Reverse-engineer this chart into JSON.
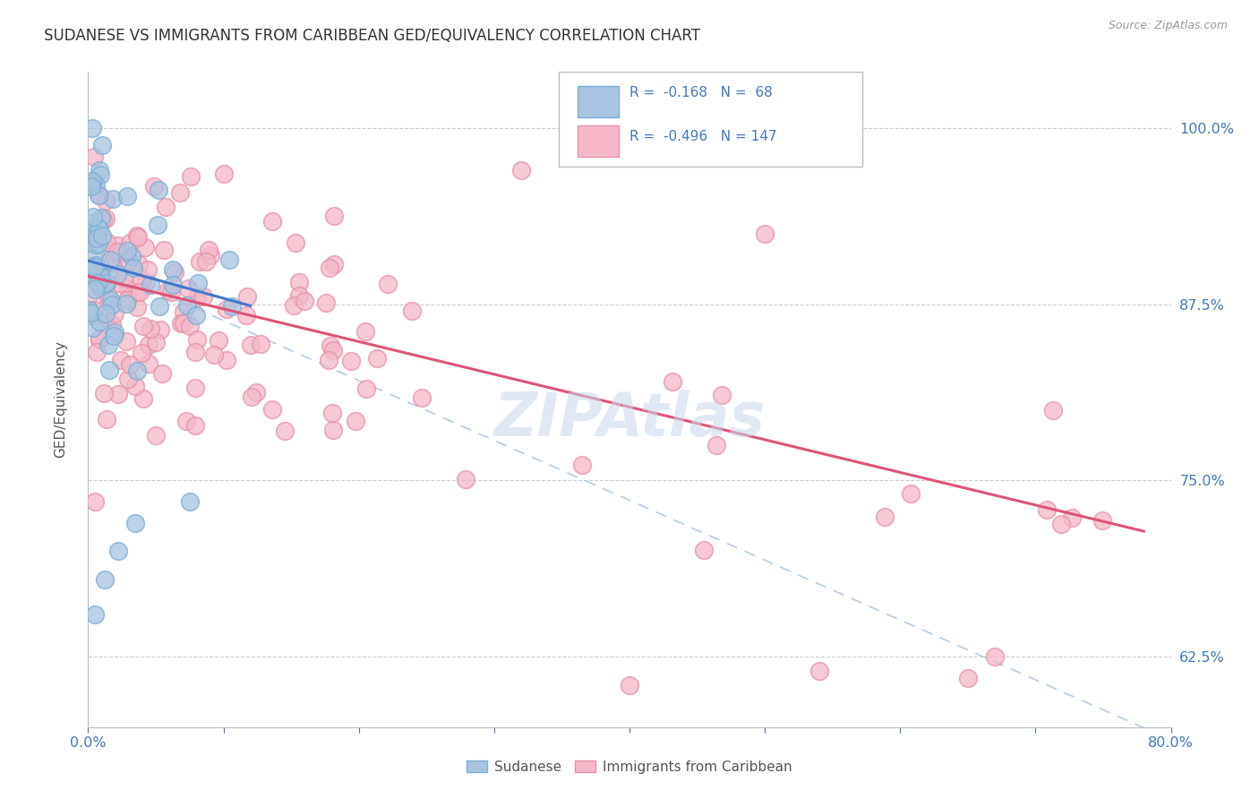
{
  "title": "SUDANESE VS IMMIGRANTS FROM CARIBBEAN GED/EQUIVALENCY CORRELATION CHART",
  "source": "Source: ZipAtlas.com",
  "ylabel": "GED/Equivalency",
  "blue_R": -0.168,
  "blue_N": 68,
  "pink_R": -0.496,
  "pink_N": 147,
  "blue_color": "#a8c4e0",
  "pink_color": "#f4b8c8",
  "blue_edge": "#7aafd4",
  "pink_edge": "#e890a8",
  "blue_line_color": "#4477cc",
  "pink_line_color": "#dd5577",
  "dashed_line_color": "#99bbdd",
  "title_color": "#333333",
  "axis_label_color": "#4477bb",
  "legend_text_color": "#4477bb",
  "right_axis_color": "#4477bb",
  "watermark_color": "#c8d8ea",
  "xlim": [
    0.0,
    0.8
  ],
  "ylim": [
    0.575,
    1.04
  ],
  "y_ticks": [
    0.625,
    0.75,
    0.875,
    1.0
  ],
  "y_tick_labels": [
    "62.5%",
    "75.0%",
    "87.5%",
    "100.0%"
  ],
  "blue_line_x0": 0.0,
  "blue_line_y0": 0.906,
  "blue_line_x1": 0.12,
  "blue_line_y1": 0.874,
  "pink_line_x0": 0.0,
  "pink_line_y0": 0.895,
  "pink_line_x1": 0.78,
  "pink_line_y1": 0.714,
  "dash_line_x0": 0.0,
  "dash_line_y0": 0.906,
  "dash_line_x1": 0.8,
  "dash_line_y1": 0.566
}
